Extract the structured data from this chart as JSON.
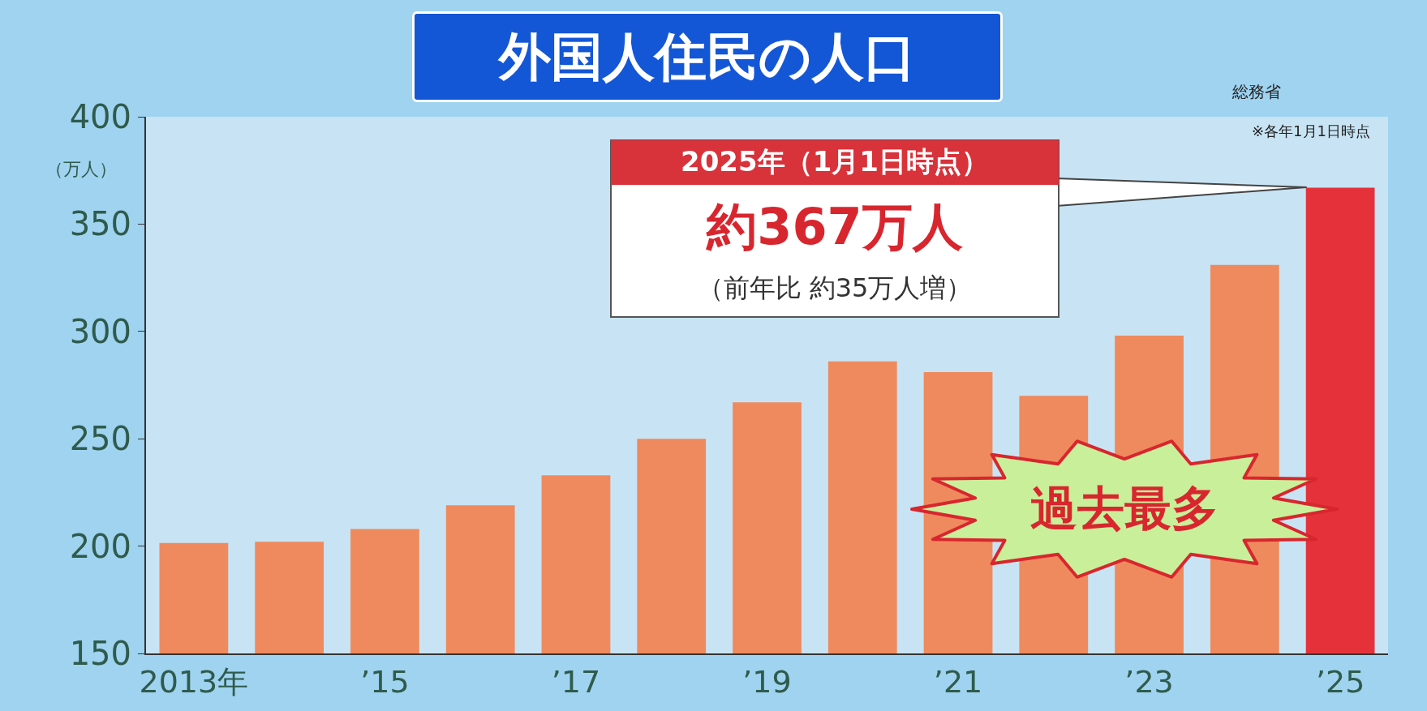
{
  "chart_data": {
    "type": "bar",
    "title": "外国人住民の人口",
    "ylabel": "（万人）",
    "categories": [
      "2013年",
      null,
      "’15",
      null,
      "’17",
      null,
      "’19",
      null,
      "’21",
      null,
      "’23",
      null,
      "’25"
    ],
    "values": [
      201.5,
      202,
      208,
      219,
      233,
      250,
      267,
      286,
      281,
      270,
      298,
      331,
      367
    ],
    "colors": [
      "#ef8a5e",
      "#ef8a5e",
      "#ef8a5e",
      "#ef8a5e",
      "#ef8a5e",
      "#ef8a5e",
      "#ef8a5e",
      "#ef8a5e",
      "#ef8a5e",
      "#ef8a5e",
      "#ef8a5e",
      "#ef8a5e",
      "#e5323a"
    ],
    "ylim": [
      150,
      400
    ],
    "yticks": [
      150,
      200,
      250,
      300,
      350,
      400
    ],
    "grid": false,
    "legend": false,
    "annotations": [
      "総務省",
      "※各年1月1日時点",
      "2025年（1月1日時点）",
      "約367万人",
      "（前年比 約35万人増）",
      "過去最多"
    ]
  }
}
